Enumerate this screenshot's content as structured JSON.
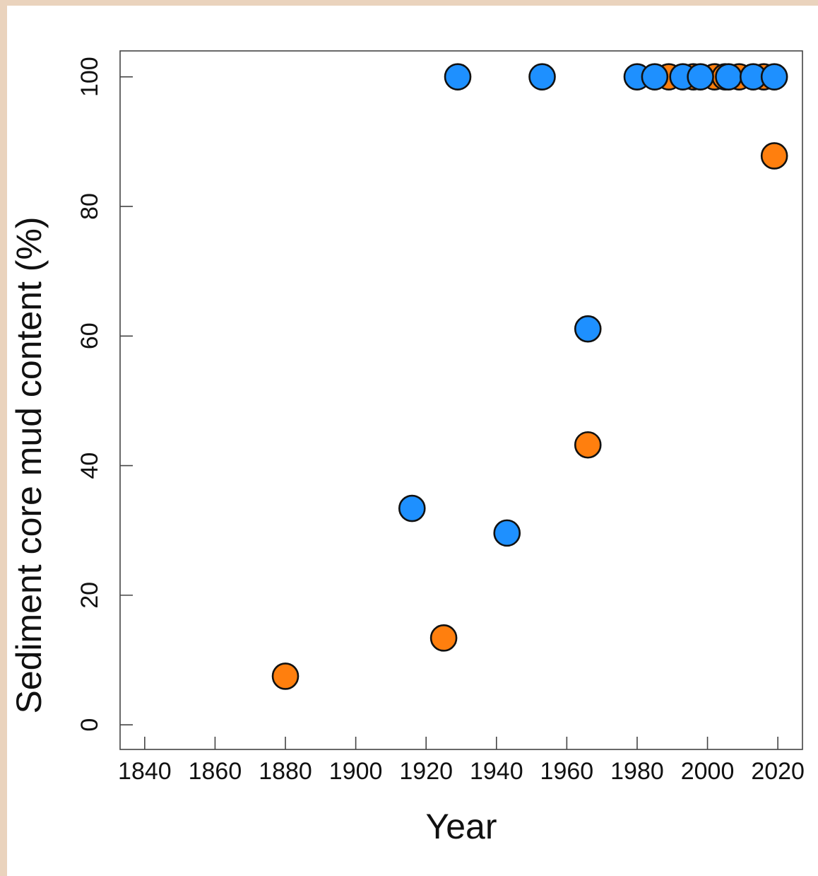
{
  "chart_data": {
    "type": "scatter",
    "xlabel": "Year",
    "ylabel": "Sediment core mud content (%)",
    "xlim": [
      1833,
      2027
    ],
    "ylim": [
      -3.8,
      104
    ],
    "xticks": [
      1840,
      1860,
      1880,
      1900,
      1920,
      1940,
      1960,
      1980,
      2000,
      2020
    ],
    "yticks": [
      0,
      20,
      40,
      60,
      80,
      100
    ],
    "grid": false,
    "legend": "none",
    "series": [
      {
        "color": "#ff7f0e",
        "points": [
          {
            "x": 1880,
            "y": 7.5
          },
          {
            "x": 1925,
            "y": 13.4
          },
          {
            "x": 1966,
            "y": 43.2
          },
          {
            "x": 1989,
            "y": 100
          },
          {
            "x": 1996,
            "y": 100
          },
          {
            "x": 2002,
            "y": 100
          },
          {
            "x": 2005,
            "y": 100
          },
          {
            "x": 2009,
            "y": 100
          },
          {
            "x": 2016,
            "y": 100
          },
          {
            "x": 2019,
            "y": 87.8
          }
        ]
      },
      {
        "color": "#1e90ff",
        "points": [
          {
            "x": 1916,
            "y": 33.4
          },
          {
            "x": 1929,
            "y": 100
          },
          {
            "x": 1943,
            "y": 29.6
          },
          {
            "x": 1953,
            "y": 100
          },
          {
            "x": 1966,
            "y": 61.1
          },
          {
            "x": 1980,
            "y": 100
          },
          {
            "x": 1985,
            "y": 100
          },
          {
            "x": 1993,
            "y": 100
          },
          {
            "x": 1998,
            "y": 100
          },
          {
            "x": 2006,
            "y": 100
          },
          {
            "x": 2013,
            "y": 100
          },
          {
            "x": 2019,
            "y": 100
          }
        ]
      }
    ]
  }
}
